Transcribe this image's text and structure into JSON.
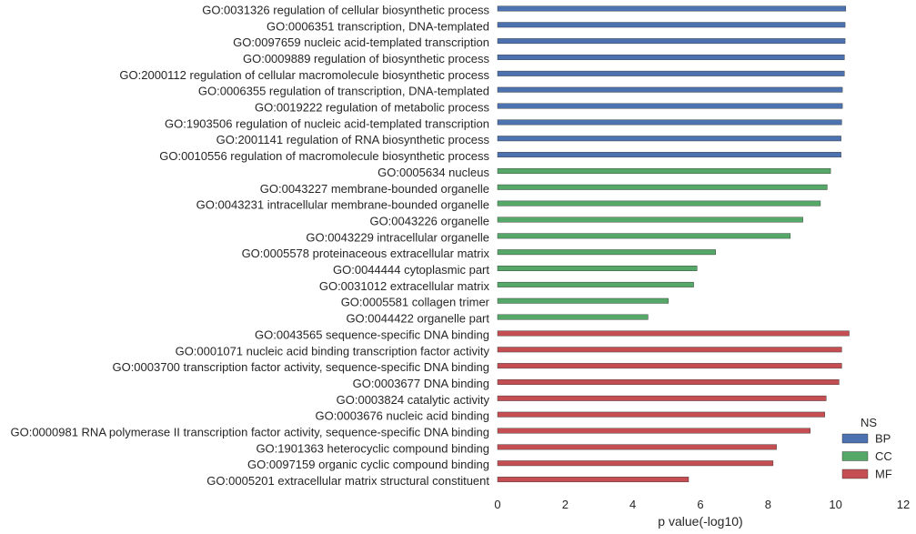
{
  "chart_data": {
    "type": "bar",
    "orientation": "horizontal",
    "xlabel": "p value(-log10)",
    "ylabel": "",
    "xlim": [
      0,
      12
    ],
    "xticks": [
      "0",
      "2",
      "4",
      "6",
      "8",
      "10",
      "12"
    ],
    "grid": false,
    "legend": {
      "title": "NS",
      "placement": "bottom-right",
      "entries": [
        {
          "name": "BP",
          "color": "#4c72b0"
        },
        {
          "name": "CC",
          "color": "#55a868"
        },
        {
          "name": "MF",
          "color": "#c44e52"
        }
      ]
    },
    "categories": [
      {
        "label": "GO:0031326 regulation of cellular biosynthetic process",
        "value": 10.3,
        "ns": "BP"
      },
      {
        "label": "GO:0006351 transcription, DNA-templated",
        "value": 10.28,
        "ns": "BP"
      },
      {
        "label": "GO:0097659 nucleic acid-templated transcription",
        "value": 10.28,
        "ns": "BP"
      },
      {
        "label": "GO:0009889 regulation of biosynthetic process",
        "value": 10.26,
        "ns": "BP"
      },
      {
        "label": "GO:2000112 regulation of cellular macromolecule biosynthetic process",
        "value": 10.26,
        "ns": "BP"
      },
      {
        "label": "GO:0006355 regulation of transcription, DNA-templated",
        "value": 10.2,
        "ns": "BP"
      },
      {
        "label": "GO:0019222 regulation of metabolic process",
        "value": 10.2,
        "ns": "BP"
      },
      {
        "label": "GO:1903506 regulation of nucleic acid-templated transcription",
        "value": 10.18,
        "ns": "BP"
      },
      {
        "label": "GO:2001141 regulation of RNA biosynthetic process",
        "value": 10.16,
        "ns": "BP"
      },
      {
        "label": "GO:0010556 regulation of macromolecule biosynthetic process",
        "value": 10.16,
        "ns": "BP"
      },
      {
        "label": "GO:0005634 nucleus",
        "value": 9.85,
        "ns": "CC"
      },
      {
        "label": "GO:0043227 membrane-bounded organelle",
        "value": 9.75,
        "ns": "CC"
      },
      {
        "label": "GO:0043231 intracellular membrane-bounded organelle",
        "value": 9.55,
        "ns": "CC"
      },
      {
        "label": "GO:0043226 organelle",
        "value": 9.03,
        "ns": "CC"
      },
      {
        "label": "GO:0043229 intracellular organelle",
        "value": 8.66,
        "ns": "CC"
      },
      {
        "label": "GO:0005578 proteinaceous extracellular matrix",
        "value": 6.45,
        "ns": "CC"
      },
      {
        "label": "GO:0044444 cytoplasmic part",
        "value": 5.9,
        "ns": "CC"
      },
      {
        "label": "GO:0031012 extracellular matrix",
        "value": 5.8,
        "ns": "CC"
      },
      {
        "label": "GO:0005581 collagen trimer",
        "value": 5.05,
        "ns": "CC"
      },
      {
        "label": "GO:0044422 organelle part",
        "value": 4.45,
        "ns": "CC"
      },
      {
        "label": "GO:0043565 sequence-specific DNA binding",
        "value": 10.4,
        "ns": "MF"
      },
      {
        "label": "GO:0001071 nucleic acid binding transcription factor activity",
        "value": 10.18,
        "ns": "MF"
      },
      {
        "label": "GO:0003700 transcription factor activity, sequence-specific DNA binding",
        "value": 10.18,
        "ns": "MF"
      },
      {
        "label": "GO:0003677 DNA binding",
        "value": 10.1,
        "ns": "MF"
      },
      {
        "label": "GO:0003824 catalytic activity",
        "value": 9.72,
        "ns": "MF"
      },
      {
        "label": "GO:0003676 nucleic acid binding",
        "value": 9.68,
        "ns": "MF"
      },
      {
        "label": "GO:0000981 RNA polymerase II transcription factor activity, sequence-specific DNA binding",
        "value": 9.25,
        "ns": "MF"
      },
      {
        "label": "GO:1901363 heterocyclic compound binding",
        "value": 8.25,
        "ns": "MF"
      },
      {
        "label": "GO:0097159 organic cyclic compound binding",
        "value": 8.15,
        "ns": "MF"
      },
      {
        "label": "GO:0005201 extracellular matrix structural constituent",
        "value": 5.65,
        "ns": "MF"
      }
    ]
  }
}
